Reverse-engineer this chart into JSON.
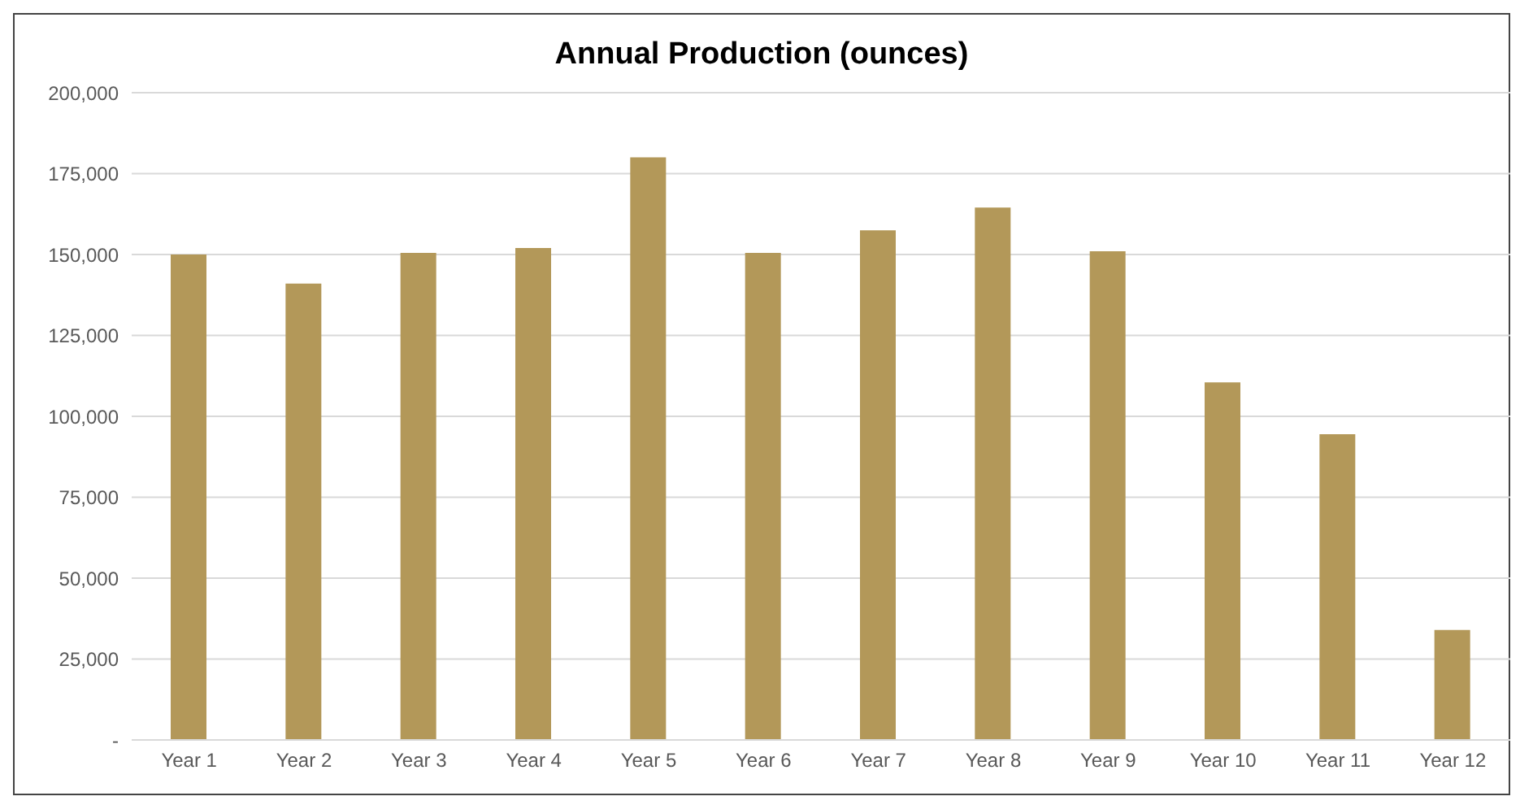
{
  "chart_data": {
    "type": "bar",
    "title": "Annual Production (ounces)",
    "categories": [
      "Year 1",
      "Year 2",
      "Year 3",
      "Year 4",
      "Year 5",
      "Year 6",
      "Year 7",
      "Year 8",
      "Year 9",
      "Year 10",
      "Year 11",
      "Year 12"
    ],
    "values": [
      150000,
      141000,
      150500,
      152000,
      180000,
      150500,
      157500,
      164500,
      151000,
      110500,
      94500,
      34000
    ],
    "color": "#b39859",
    "ylim": [
      0,
      200000
    ],
    "yticks": [
      {
        "value": 0,
        "label": "-"
      },
      {
        "value": 25000,
        "label": "25,000"
      },
      {
        "value": 50000,
        "label": "50,000"
      },
      {
        "value": 75000,
        "label": "75,000"
      },
      {
        "value": 100000,
        "label": "100,000"
      },
      {
        "value": 125000,
        "label": "125,000"
      },
      {
        "value": 150000,
        "label": "150,000"
      },
      {
        "value": 175000,
        "label": "175,000"
      },
      {
        "value": 200000,
        "label": "200,000"
      }
    ],
    "grid": "y"
  }
}
